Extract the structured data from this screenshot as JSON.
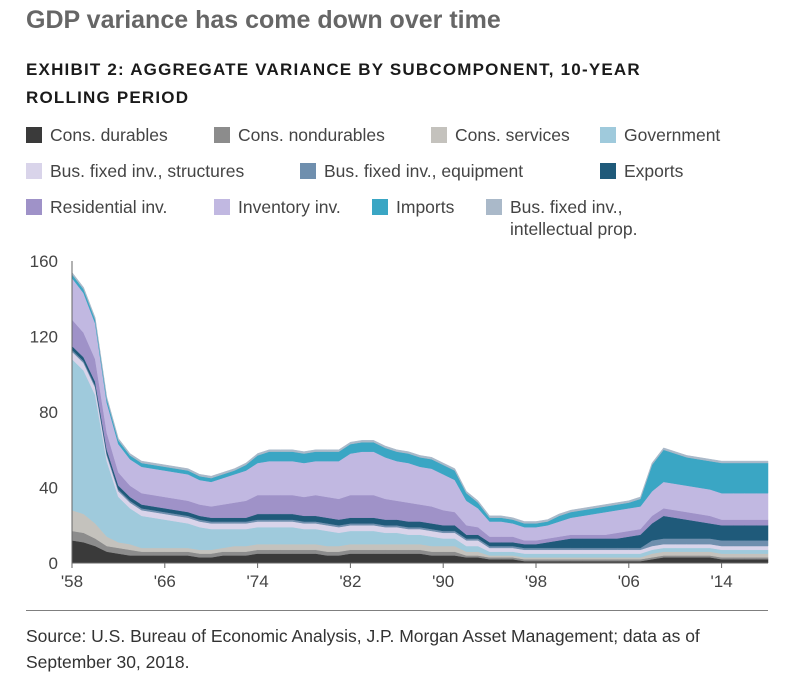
{
  "headline": "GDP variance has come down over time",
  "source": "Source: U.S. Bureau of Economic Analysis, J.P. Morgan Asset Management; data as of September 30, 2018.",
  "chart_data": {
    "type": "area",
    "stacked": true,
    "title": "EXHIBIT 2: AGGREGATE VARIANCE BY SUBCOMPONENT, 10-YEAR ROLLING PERIOD",
    "xlabel": "",
    "ylabel": "",
    "ylim": [
      0,
      160
    ],
    "yticks": [
      0,
      40,
      80,
      120,
      160
    ],
    "xticks": [
      1958,
      1966,
      1974,
      1982,
      1990,
      1998,
      2006,
      2014
    ],
    "xtick_labels": [
      "'58",
      "'66",
      "'74",
      "'82",
      "'90",
      "'98",
      "'06",
      "'14"
    ],
    "x": [
      1958,
      1959,
      1960,
      1961,
      1962,
      1963,
      1964,
      1965,
      1966,
      1967,
      1968,
      1969,
      1970,
      1971,
      1972,
      1973,
      1974,
      1975,
      1976,
      1977,
      1978,
      1979,
      1980,
      1981,
      1982,
      1983,
      1984,
      1985,
      1986,
      1987,
      1988,
      1989,
      1990,
      1991,
      1992,
      1993,
      1994,
      1995,
      1996,
      1997,
      1998,
      1999,
      2000,
      2001,
      2002,
      2003,
      2004,
      2005,
      2006,
      2007,
      2008,
      2009,
      2010,
      2011,
      2012,
      2013,
      2014,
      2015,
      2016,
      2017,
      2018
    ],
    "grid": false,
    "legend_position": "top",
    "series": [
      {
        "name": "Cons. durables",
        "color": "#3a3a3a",
        "values": [
          12,
          11,
          9,
          6,
          5,
          4,
          4,
          4,
          4,
          4,
          4,
          3,
          3,
          4,
          4,
          4,
          5,
          5,
          5,
          5,
          5,
          5,
          4,
          4,
          5,
          5,
          5,
          5,
          5,
          5,
          5,
          4,
          4,
          4,
          3,
          3,
          2,
          2,
          2,
          1,
          1,
          1,
          1,
          1,
          1,
          1,
          1,
          1,
          1,
          1,
          2,
          3,
          3,
          3,
          3,
          3,
          2,
          2,
          2,
          2,
          2
        ]
      },
      {
        "name": "Cons. nondurables",
        "color": "#8c8c8c",
        "values": [
          5,
          5,
          4,
          3,
          3,
          3,
          2,
          2,
          2,
          2,
          2,
          2,
          2,
          2,
          2,
          2,
          2,
          2,
          2,
          2,
          2,
          2,
          2,
          2,
          2,
          2,
          2,
          2,
          2,
          2,
          2,
          2,
          2,
          2,
          1,
          1,
          1,
          1,
          1,
          1,
          1,
          1,
          1,
          1,
          1,
          1,
          1,
          1,
          1,
          1,
          1,
          1,
          1,
          1,
          1,
          1,
          1,
          1,
          1,
          1,
          1
        ]
      },
      {
        "name": "Cons. services",
        "color": "#c4c2bd",
        "values": [
          11,
          10,
          8,
          5,
          3,
          3,
          2,
          2,
          2,
          2,
          2,
          2,
          2,
          2,
          3,
          3,
          3,
          3,
          3,
          3,
          3,
          3,
          3,
          3,
          3,
          3,
          3,
          3,
          3,
          3,
          3,
          3,
          3,
          3,
          2,
          2,
          1,
          1,
          1,
          1,
          1,
          1,
          1,
          1,
          1,
          1,
          1,
          1,
          1,
          1,
          2,
          2,
          2,
          2,
          2,
          2,
          2,
          2,
          2,
          2,
          2
        ]
      },
      {
        "name": "Government",
        "color": "#9fcadc",
        "values": [
          80,
          76,
          68,
          40,
          24,
          19,
          17,
          16,
          15,
          14,
          13,
          12,
          11,
          10,
          9,
          9,
          9,
          9,
          9,
          9,
          8,
          8,
          8,
          7,
          7,
          7,
          7,
          6,
          6,
          5,
          5,
          5,
          4,
          4,
          3,
          3,
          2,
          2,
          2,
          2,
          2,
          2,
          2,
          2,
          2,
          2,
          2,
          2,
          2,
          2,
          2,
          2,
          2,
          2,
          2,
          2,
          2,
          2,
          2,
          2,
          2
        ]
      },
      {
        "name": "Bus. fixed inv., structures",
        "color": "#d9d4ea",
        "values": [
          4,
          4,
          4,
          3,
          3,
          3,
          3,
          3,
          3,
          3,
          3,
          3,
          3,
          3,
          3,
          3,
          3,
          3,
          3,
          3,
          3,
          3,
          3,
          3,
          3,
          3,
          3,
          3,
          3,
          3,
          3,
          3,
          3,
          3,
          3,
          3,
          2,
          2,
          2,
          2,
          2,
          2,
          2,
          2,
          2,
          2,
          2,
          2,
          2,
          2,
          2,
          2,
          2,
          2,
          2,
          2,
          2,
          2,
          2,
          2,
          2
        ]
      },
      {
        "name": "Bus. fixed inv., equipment",
        "color": "#6f8fae",
        "values": [
          1,
          1,
          1,
          1,
          1,
          1,
          1,
          1,
          1,
          1,
          1,
          1,
          1,
          1,
          1,
          1,
          1,
          1,
          1,
          1,
          1,
          1,
          1,
          1,
          1,
          1,
          1,
          1,
          1,
          1,
          1,
          1,
          1,
          1,
          1,
          1,
          1,
          1,
          1,
          1,
          1,
          1,
          1,
          1,
          1,
          1,
          1,
          1,
          1,
          1,
          3,
          3,
          3,
          3,
          3,
          3,
          3,
          3,
          3,
          3,
          3
        ]
      },
      {
        "name": "Exports",
        "color": "#1f5a7a",
        "values": [
          2,
          2,
          2,
          2,
          2,
          2,
          2,
          2,
          2,
          2,
          2,
          2,
          2,
          2,
          2,
          2,
          3,
          3,
          3,
          3,
          3,
          3,
          3,
          3,
          3,
          3,
          3,
          3,
          3,
          3,
          3,
          3,
          3,
          3,
          2,
          2,
          2,
          2,
          2,
          2,
          2,
          3,
          4,
          5,
          5,
          5,
          5,
          5,
          6,
          7,
          9,
          12,
          11,
          10,
          9,
          8,
          8,
          8,
          8,
          8,
          8
        ]
      },
      {
        "name": "Residential inv.",
        "color": "#9f92c8",
        "values": [
          14,
          13,
          12,
          9,
          7,
          6,
          6,
          6,
          6,
          6,
          6,
          6,
          6,
          7,
          8,
          9,
          10,
          10,
          10,
          10,
          10,
          11,
          11,
          11,
          12,
          12,
          12,
          11,
          10,
          10,
          9,
          9,
          8,
          7,
          5,
          4,
          3,
          3,
          3,
          2,
          2,
          2,
          2,
          2,
          2,
          2,
          2,
          3,
          3,
          3,
          4,
          4,
          4,
          4,
          4,
          4,
          3,
          3,
          3,
          3,
          3
        ]
      },
      {
        "name": "Inventory inv.",
        "color": "#c1b8e1",
        "values": [
          22,
          21,
          19,
          16,
          15,
          14,
          14,
          14,
          14,
          14,
          14,
          13,
          13,
          14,
          15,
          16,
          17,
          18,
          18,
          18,
          18,
          18,
          19,
          20,
          22,
          23,
          23,
          22,
          21,
          21,
          20,
          20,
          19,
          17,
          13,
          10,
          8,
          8,
          7,
          7,
          7,
          7,
          8,
          9,
          10,
          11,
          12,
          12,
          12,
          12,
          13,
          14,
          14,
          14,
          14,
          14,
          14,
          14,
          14,
          14,
          14
        ]
      },
      {
        "name": "Imports",
        "color": "#3aa6c4",
        "values": [
          2,
          2,
          2,
          2,
          2,
          2,
          2,
          2,
          2,
          2,
          2,
          2,
          2,
          2,
          2,
          3,
          4,
          5,
          5,
          5,
          5,
          5,
          5,
          5,
          5,
          5,
          5,
          5,
          5,
          5,
          5,
          5,
          5,
          5,
          4,
          3,
          2,
          2,
          2,
          2,
          2,
          2,
          3,
          3,
          3,
          3,
          3,
          3,
          3,
          4,
          14,
          17,
          16,
          15,
          15,
          15,
          16,
          16,
          16,
          16,
          16
        ]
      },
      {
        "name": "Bus. fixed inv., intellectual prop.",
        "color": "#aab9c9",
        "values": [
          1,
          1,
          1,
          1,
          1,
          1,
          1,
          1,
          1,
          1,
          1,
          1,
          1,
          1,
          1,
          1,
          1,
          1,
          1,
          1,
          1,
          1,
          1,
          1,
          1,
          1,
          1,
          1,
          1,
          1,
          1,
          1,
          1,
          1,
          1,
          1,
          1,
          1,
          1,
          1,
          1,
          1,
          1,
          1,
          1,
          1,
          1,
          1,
          1,
          1,
          1,
          1,
          1,
          1,
          1,
          1,
          1,
          1,
          1,
          1,
          1
        ]
      }
    ],
    "legend": [
      {
        "label": "Cons. durables",
        "color": "#3a3a3a"
      },
      {
        "label": "Cons. nondurables",
        "color": "#8c8c8c"
      },
      {
        "label": "Cons. services",
        "color": "#c4c2bd"
      },
      {
        "label": "Government",
        "color": "#9fcadc"
      },
      {
        "label": "Bus. fixed inv., structures",
        "color": "#d9d4ea"
      },
      {
        "label": "Bus. fixed inv., equipment",
        "color": "#6f8fae"
      },
      {
        "label": "Exports",
        "color": "#1f5a7a"
      },
      {
        "label": "Residential inv.",
        "color": "#9f92c8"
      },
      {
        "label": "Inventory inv.",
        "color": "#c1b8e1"
      },
      {
        "label": "Imports",
        "color": "#3aa6c4"
      },
      {
        "label": "Bus. fixed inv.,\nintellectual prop.",
        "color": "#aab9c9"
      }
    ]
  }
}
